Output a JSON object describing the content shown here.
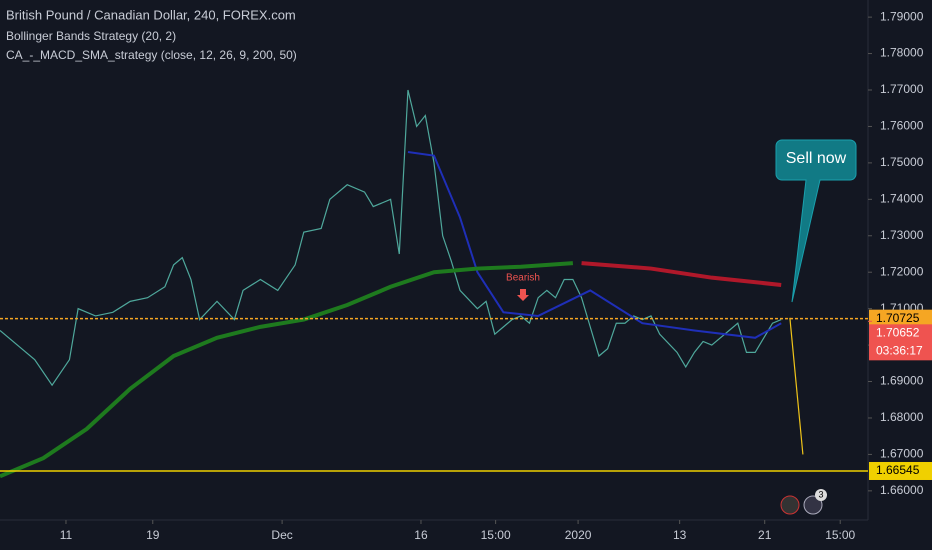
{
  "chart_data": {
    "type": "line",
    "title": "British Pound / Canadian Dollar, 240, FOREX.com",
    "subtitles": [
      "Bollinger Bands Strategy (20, 2)",
      "CA_-_MACD_SMA_strategy (close, 12, 26, 9, 200, 50)"
    ],
    "xlim": [
      0,
      100
    ],
    "ylim": [
      1.652,
      1.7947
    ],
    "xticks": [
      {
        "value": 7.6,
        "label": "11"
      },
      {
        "value": 17.6,
        "label": "19"
      },
      {
        "value": 32.5,
        "label": "Dec"
      },
      {
        "value": 48.5,
        "label": "16"
      },
      {
        "value": 57.1,
        "label": "15:00"
      },
      {
        "value": 66.6,
        "label": "2020"
      },
      {
        "value": 78.3,
        "label": "13"
      },
      {
        "value": 88.1,
        "label": "21"
      },
      {
        "value": 96.8,
        "label": "15:00"
      }
    ],
    "yticks": [
      {
        "value": 1.66,
        "label": "1.66000"
      },
      {
        "value": 1.67,
        "label": "1.67000"
      },
      {
        "value": 1.68,
        "label": "1.68000"
      },
      {
        "value": 1.69,
        "label": "1.69000"
      },
      {
        "value": 1.7,
        "label": "1.70000"
      },
      {
        "value": 1.71,
        "label": "1.71000"
      },
      {
        "value": 1.72,
        "label": "1.72000"
      },
      {
        "value": 1.73,
        "label": "1.73000"
      },
      {
        "value": 1.74,
        "label": "1.74000"
      },
      {
        "value": 1.75,
        "label": "1.75000"
      },
      {
        "value": 1.76,
        "label": "1.76000"
      },
      {
        "value": 1.77,
        "label": "1.77000"
      },
      {
        "value": 1.78,
        "label": "1.78000"
      },
      {
        "value": 1.79,
        "label": "1.79000"
      }
    ],
    "series": [
      {
        "color": "#4fa89c",
        "width": 1.2,
        "x": [
          0,
          2,
          4,
          6,
          8,
          9,
          11,
          13,
          15,
          17,
          19,
          20,
          21,
          22,
          23,
          25,
          27,
          28,
          30,
          32,
          34,
          35,
          37,
          38,
          40,
          42,
          43,
          45,
          46,
          47,
          48,
          49,
          50,
          51,
          52,
          53,
          55,
          56,
          57,
          58,
          59,
          60,
          61,
          62,
          63,
          64,
          65,
          66,
          67,
          68,
          69,
          70,
          71,
          72,
          73,
          74,
          75,
          76,
          78,
          79,
          80,
          81,
          82,
          84,
          85,
          86,
          87,
          88,
          89,
          90
        ],
        "values": [
          1.704,
          1.7,
          1.696,
          1.689,
          1.696,
          1.71,
          1.708,
          1.709,
          1.712,
          1.713,
          1.716,
          1.722,
          1.724,
          1.718,
          1.707,
          1.712,
          1.707,
          1.715,
          1.718,
          1.715,
          1.722,
          1.731,
          1.732,
          1.74,
          1.744,
          1.742,
          1.738,
          1.74,
          1.725,
          1.77,
          1.76,
          1.763,
          1.75,
          1.73,
          1.723,
          1.715,
          1.71,
          1.712,
          1.703,
          1.705,
          1.707,
          1.708,
          1.706,
          1.713,
          1.715,
          1.713,
          1.718,
          1.718,
          1.713,
          1.705,
          1.697,
          1.699,
          1.706,
          1.706,
          1.708,
          1.707,
          1.708,
          1.703,
          1.698,
          1.694,
          1.698,
          1.701,
          1.7,
          1.704,
          1.706,
          1.698,
          1.698,
          1.702,
          1.706,
          1.707
        ]
      },
      {
        "color": "#1f2fb8",
        "width": 2,
        "x": [
          47,
          50,
          53,
          55,
          58,
          62,
          68,
          74,
          80,
          87,
          90
        ],
        "values": [
          1.753,
          1.752,
          1.735,
          1.72,
          1.709,
          1.708,
          1.715,
          1.706,
          1.704,
          1.702,
          1.706
        ]
      },
      {
        "color": "#1e7a1e",
        "width": 4,
        "x": [
          0,
          5,
          10,
          15,
          20,
          25,
          30,
          35,
          40,
          45,
          50,
          55,
          60,
          66
        ],
        "values": [
          1.664,
          1.669,
          1.677,
          1.688,
          1.697,
          1.702,
          1.705,
          1.707,
          1.711,
          1.716,
          1.72,
          1.721,
          1.7215,
          1.7225
        ]
      },
      {
        "color": "#b0182a",
        "width": 4,
        "x": [
          67,
          75,
          82,
          90
        ],
        "values": [
          1.7225,
          1.721,
          1.7185,
          1.7165
        ]
      },
      {
        "color": "#f0c419",
        "width": 1.2,
        "x": [
          91,
          92.5
        ],
        "values": [
          1.7075,
          1.67
        ]
      }
    ],
    "hlines": [
      {
        "value": 1.70725,
        "label": "1.70725",
        "color": "#f5a623",
        "dashed": true
      },
      {
        "value": 1.66545,
        "label": "1.66545",
        "color": "#f0d000",
        "dashed": false
      }
    ],
    "last_price": {
      "value": 1.70652,
      "label": "1.70652",
      "countdown": "03:36:17",
      "color": "#ef5350"
    },
    "annotations": [
      {
        "text": "Sell now"
      },
      {
        "text": "Bearish"
      }
    ],
    "badge": "3"
  }
}
